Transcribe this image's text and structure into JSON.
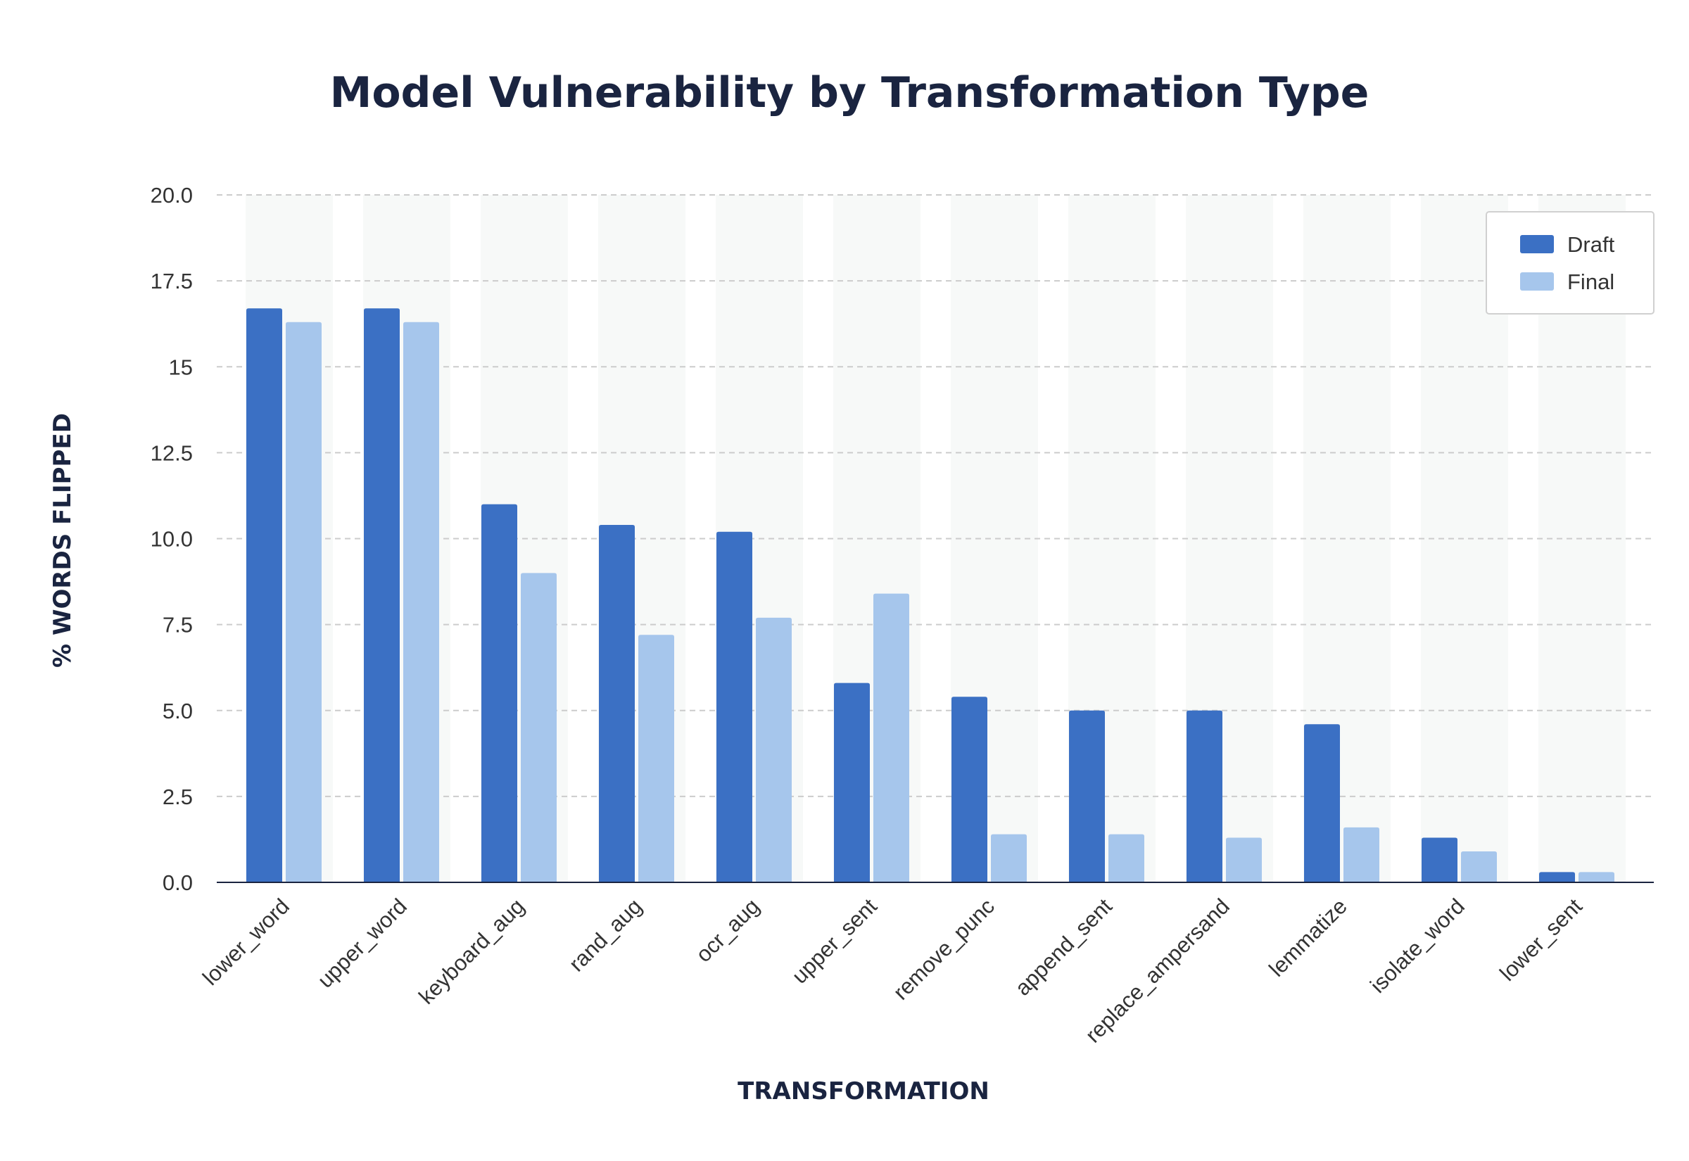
{
  "chart_data": {
    "type": "bar",
    "title": "Model Vulnerability by Transformation Type",
    "xlabel": "TRANSFORMATION",
    "ylabel": "% WORDS FLIPPED",
    "ylim": [
      0,
      20
    ],
    "yticks": [
      "0.0",
      "2.5",
      "5.0",
      "7.5",
      "10.0",
      "12.5",
      "15",
      "17.5",
      "20.0"
    ],
    "ytick_values": [
      0,
      2.5,
      5,
      7.5,
      10,
      12.5,
      15,
      17.5,
      20
    ],
    "grid": true,
    "legend_position": "top-right",
    "categories": [
      "lower_word",
      "upper_word",
      "keyboard_aug",
      "rand_aug",
      "ocr_aug",
      "upper_sent",
      "remove_punc",
      "append_sent",
      "replace_ampersand",
      "lemmatize",
      "isolate_word",
      "lower_sent"
    ],
    "series": [
      {
        "name": "Draft",
        "color": "#3b70c4",
        "values": [
          16.7,
          16.7,
          11.0,
          10.4,
          10.2,
          5.8,
          5.4,
          5.0,
          5.0,
          4.6,
          1.3,
          0.3
        ]
      },
      {
        "name": "Final",
        "color": "#a6c6ec",
        "values": [
          16.3,
          16.3,
          9.0,
          7.2,
          7.7,
          8.4,
          1.4,
          1.4,
          1.3,
          1.6,
          0.9,
          0.3
        ]
      }
    ]
  },
  "colors": {
    "title": "#1a2440",
    "band": "#f7f9f8",
    "grid": "#cccccc",
    "axis": "#1a2440"
  }
}
